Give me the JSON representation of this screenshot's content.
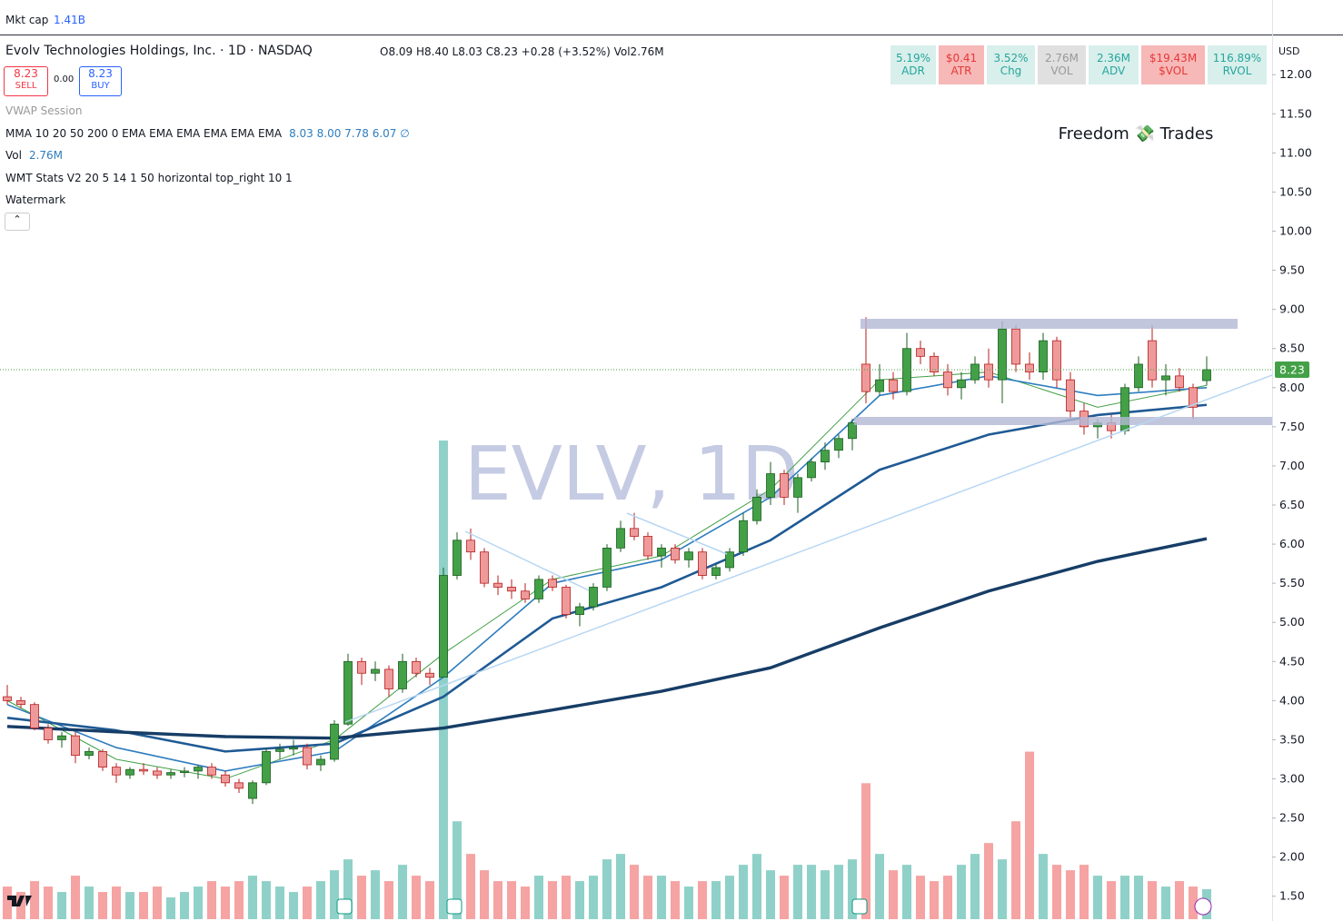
{
  "header": {
    "mkt_cap_label": "Mkt cap",
    "mkt_cap": "1.41B",
    "symbol_title": "Evolv Technologies Holdings, Inc. · 1D · NASDAQ",
    "ohlc_text": "O8.09 H8.40 L8.03 C8.23 +0.28 (+3.52%) Vol2.76M",
    "sell_price": "8.23",
    "sell": "SELL",
    "spread": "0.00",
    "buy_price": "8.23",
    "buy": "BUY",
    "currency": "USD"
  },
  "indicators": [
    {
      "name": "VWAP Session",
      "values": ""
    },
    {
      "name": "MMA 10 20 50 200 0 EMA EMA EMA EMA EMA EMA",
      "values": "8.03  8.00  7.78  6.07 ∅"
    },
    {
      "name": "Vol",
      "values": "2.76M"
    },
    {
      "name": "WMT Stats V2 20 5 14 1 50 horizontal top_right 10 1",
      "values": ""
    },
    {
      "name": "Watermark",
      "values": ""
    }
  ],
  "stats": [
    {
      "value": "5.19%",
      "label": "ADR",
      "color": "#d8efec"
    },
    {
      "value": "$0.41",
      "label": "ATR",
      "color": "#f7b8b8"
    },
    {
      "value": "3.52%",
      "label": "Chg",
      "color": "#d8efec"
    },
    {
      "value": "2.76M",
      "label": "VOL",
      "color": "#e0e0e0"
    },
    {
      "value": "2.36M",
      "label": "ADV",
      "color": "#d8efec"
    },
    {
      "value": "$19.43M",
      "label": "$VOL",
      "color": "#f7b8b8"
    },
    {
      "value": "116.89%",
      "label": "RVOL",
      "color": "#d8efec"
    }
  ],
  "watermark": "EVLV, 1D",
  "brand": "Freedom 💸 Trades",
  "chart_data": {
    "type": "candlestick",
    "up_color": "#43a047",
    "down_color": "#ef9a9a",
    "up_volume_color": "#8fd1c8",
    "down_volume_color": "#f5a3a3",
    "ylim": [
      1.23,
      12.49
    ],
    "yticks": [
      {
        "value": 12,
        "label": "12.00"
      },
      {
        "value": 11.5,
        "label": "11.50"
      },
      {
        "value": 11,
        "label": "11.00"
      },
      {
        "value": 10.5,
        "label": "10.50"
      },
      {
        "value": 10,
        "label": "10.00"
      },
      {
        "value": 9.5,
        "label": "9.50"
      },
      {
        "value": 9,
        "label": "9.00"
      },
      {
        "value": 8.5,
        "label": "8.50"
      },
      {
        "value": 8,
        "label": "8.00"
      },
      {
        "value": 7.5,
        "label": "7.50"
      },
      {
        "value": 7,
        "label": "7.00"
      },
      {
        "value": 6.5,
        "label": "6.50"
      },
      {
        "value": 6,
        "label": "6.00"
      },
      {
        "value": 5.5,
        "label": "5.50"
      },
      {
        "value": 5,
        "label": "5.00"
      },
      {
        "value": 4.5,
        "label": "4.50"
      },
      {
        "value": 4,
        "label": "4.00"
      },
      {
        "value": 3.5,
        "label": "3.50"
      },
      {
        "value": 3,
        "label": "3.00"
      },
      {
        "value": 2.5,
        "label": "2.50"
      },
      {
        "value": 2,
        "label": "2.00"
      },
      {
        "value": 1.5,
        "label": "1.50"
      }
    ],
    "last_price": {
      "value": 8.23,
      "label": "8.23"
    },
    "ohlc": [
      [
        4.05,
        4.2,
        3.95,
        4.0
      ],
      [
        4.0,
        4.05,
        3.9,
        3.95
      ],
      [
        3.95,
        3.98,
        3.62,
        3.65
      ],
      [
        3.65,
        3.7,
        3.45,
        3.5
      ],
      [
        3.5,
        3.6,
        3.4,
        3.55
      ],
      [
        3.55,
        3.6,
        3.2,
        3.3
      ],
      [
        3.3,
        3.4,
        3.25,
        3.35
      ],
      [
        3.35,
        3.38,
        3.1,
        3.15
      ],
      [
        3.15,
        3.2,
        2.95,
        3.05
      ],
      [
        3.05,
        3.15,
        3.0,
        3.12
      ],
      [
        3.12,
        3.2,
        3.05,
        3.1
      ],
      [
        3.1,
        3.15,
        3.0,
        3.05
      ],
      [
        3.05,
        3.12,
        3.0,
        3.08
      ],
      [
        3.08,
        3.15,
        3.02,
        3.1
      ],
      [
        3.1,
        3.18,
        3.0,
        3.15
      ],
      [
        3.15,
        3.2,
        3.0,
        3.05
      ],
      [
        3.05,
        3.1,
        2.9,
        2.95
      ],
      [
        2.95,
        3.0,
        2.82,
        2.88
      ],
      [
        2.75,
        2.98,
        2.68,
        2.95
      ],
      [
        2.95,
        3.4,
        2.92,
        3.35
      ],
      [
        3.35,
        3.45,
        3.25,
        3.38
      ],
      [
        3.38,
        3.5,
        3.3,
        3.4
      ],
      [
        3.4,
        3.45,
        3.12,
        3.18
      ],
      [
        3.18,
        3.3,
        3.1,
        3.25
      ],
      [
        3.25,
        3.75,
        3.22,
        3.7
      ],
      [
        3.7,
        4.6,
        3.68,
        4.5
      ],
      [
        4.5,
        4.55,
        4.2,
        4.35
      ],
      [
        4.35,
        4.5,
        4.25,
        4.4
      ],
      [
        4.4,
        4.45,
        4.05,
        4.15
      ],
      [
        4.15,
        4.6,
        4.1,
        4.5
      ],
      [
        4.5,
        4.55,
        4.3,
        4.35
      ],
      [
        4.35,
        4.42,
        4.2,
        4.3
      ],
      [
        4.3,
        5.7,
        4.3,
        5.6
      ],
      [
        5.6,
        6.15,
        5.55,
        6.05
      ],
      [
        6.05,
        6.2,
        5.8,
        5.9
      ],
      [
        5.9,
        5.95,
        5.45,
        5.5
      ],
      [
        5.5,
        5.6,
        5.35,
        5.45
      ],
      [
        5.45,
        5.55,
        5.3,
        5.4
      ],
      [
        5.4,
        5.5,
        5.25,
        5.3
      ],
      [
        5.3,
        5.6,
        5.25,
        5.55
      ],
      [
        5.55,
        5.6,
        5.4,
        5.45
      ],
      [
        5.45,
        5.48,
        5.05,
        5.1
      ],
      [
        5.1,
        5.25,
        4.95,
        5.2
      ],
      [
        5.2,
        5.5,
        5.15,
        5.45
      ],
      [
        5.45,
        6.0,
        5.4,
        5.95
      ],
      [
        5.95,
        6.3,
        5.9,
        6.2
      ],
      [
        6.2,
        6.4,
        6.05,
        6.1
      ],
      [
        6.1,
        6.15,
        5.8,
        5.85
      ],
      [
        5.85,
        6.0,
        5.7,
        5.95
      ],
      [
        5.95,
        6.0,
        5.75,
        5.8
      ],
      [
        5.8,
        5.95,
        5.7,
        5.9
      ],
      [
        5.9,
        5.95,
        5.55,
        5.6
      ],
      [
        5.6,
        5.75,
        5.55,
        5.7
      ],
      [
        5.7,
        5.95,
        5.65,
        5.9
      ],
      [
        5.9,
        6.4,
        5.85,
        6.3
      ],
      [
        6.3,
        6.7,
        6.25,
        6.6
      ],
      [
        6.6,
        7.05,
        6.5,
        6.9
      ],
      [
        6.9,
        6.95,
        6.5,
        6.6
      ],
      [
        6.6,
        6.9,
        6.4,
        6.85
      ],
      [
        6.85,
        7.1,
        6.8,
        7.05
      ],
      [
        7.05,
        7.3,
        6.95,
        7.2
      ],
      [
        7.2,
        7.4,
        7.1,
        7.35
      ],
      [
        7.35,
        7.6,
        7.2,
        7.55
      ],
      [
        8.3,
        8.9,
        7.8,
        7.95
      ],
      [
        7.95,
        8.3,
        7.9,
        8.1
      ],
      [
        8.1,
        8.2,
        7.85,
        7.95
      ],
      [
        7.95,
        8.7,
        7.9,
        8.5
      ],
      [
        8.5,
        8.6,
        8.3,
        8.4
      ],
      [
        8.4,
        8.45,
        8.15,
        8.2
      ],
      [
        8.2,
        8.3,
        7.9,
        8.0
      ],
      [
        8.0,
        8.2,
        7.85,
        8.1
      ],
      [
        8.1,
        8.4,
        8.05,
        8.3
      ],
      [
        8.3,
        8.5,
        8.0,
        8.1
      ],
      [
        8.1,
        8.85,
        7.8,
        8.75
      ],
      [
        8.75,
        8.8,
        8.2,
        8.3
      ],
      [
        8.3,
        8.45,
        8.1,
        8.2
      ],
      [
        8.2,
        8.7,
        8.1,
        8.6
      ],
      [
        8.6,
        8.65,
        8.0,
        8.1
      ],
      [
        8.1,
        8.2,
        7.6,
        7.7
      ],
      [
        7.7,
        7.8,
        7.4,
        7.5
      ],
      [
        7.5,
        7.6,
        7.35,
        7.55
      ],
      [
        7.55,
        7.65,
        7.35,
        7.45
      ],
      [
        7.45,
        8.05,
        7.4,
        8.0
      ],
      [
        8.0,
        8.4,
        7.95,
        8.3
      ],
      [
        8.6,
        8.8,
        8.0,
        8.1
      ],
      [
        8.1,
        8.3,
        7.9,
        8.15
      ],
      [
        8.15,
        8.25,
        7.95,
        8.0
      ],
      [
        8.0,
        8.05,
        7.6,
        7.75
      ],
      [
        8.09,
        8.4,
        8.03,
        8.23
      ]
    ],
    "volume": [
      3,
      2.5,
      3.5,
      3,
      2.5,
      4,
      3,
      2.5,
      3,
      2.5,
      2.5,
      3,
      2,
      2.5,
      3,
      3.5,
      3,
      3.5,
      4,
      3.5,
      3,
      2.5,
      3,
      3.5,
      4.5,
      5.5,
      4,
      4.5,
      3.5,
      5,
      4,
      3.5,
      44,
      9,
      6,
      4.5,
      3.5,
      3.5,
      3,
      4,
      3.5,
      4,
      3.5,
      4,
      5.5,
      6,
      5,
      4,
      4,
      3.5,
      3,
      3.5,
      3.5,
      4,
      5,
      6,
      4.5,
      4,
      5,
      5,
      4.5,
      5,
      5.5,
      12.5,
      6,
      4.5,
      5,
      4,
      3.5,
      4,
      5,
      6,
      7,
      5.5,
      9,
      15.4,
      6,
      5,
      4.5,
      5,
      4,
      3.5,
      4,
      4,
      3.5,
      3,
      3.5,
      3,
      2.76
    ],
    "moving_averages": [
      {
        "color": "#43a047",
        "width": 1,
        "x": [
          0,
          8,
          16,
          24,
          32,
          40,
          48,
          56,
          64,
          72,
          80,
          88
        ],
        "values": [
          4.0,
          3.25,
          3.0,
          3.5,
          4.6,
          5.55,
          5.85,
          6.7,
          8.1,
          8.2,
          7.75,
          8.03
        ]
      },
      {
        "color": "#2e7dbf",
        "width": 1.6,
        "x": [
          0,
          8,
          16,
          24,
          32,
          40,
          48,
          56,
          64,
          72,
          80,
          88
        ],
        "values": [
          3.95,
          3.4,
          3.1,
          3.35,
          4.3,
          5.5,
          5.8,
          6.6,
          7.9,
          8.15,
          7.9,
          8.0
        ]
      },
      {
        "color": "#1f5a94",
        "width": 2.6,
        "x": [
          0,
          8,
          16,
          24,
          32,
          40,
          48,
          56,
          64,
          72,
          80,
          88
        ],
        "values": [
          3.78,
          3.62,
          3.35,
          3.45,
          4.05,
          5.05,
          5.45,
          6.05,
          6.95,
          7.4,
          7.65,
          7.78
        ]
      },
      {
        "color": "#163d66",
        "width": 3.4,
        "x": [
          0,
          8,
          16,
          24,
          32,
          40,
          48,
          56,
          64,
          72,
          80,
          88
        ],
        "values": [
          3.67,
          3.6,
          3.54,
          3.52,
          3.65,
          3.88,
          4.12,
          4.42,
          4.93,
          5.4,
          5.78,
          6.07
        ]
      }
    ]
  }
}
